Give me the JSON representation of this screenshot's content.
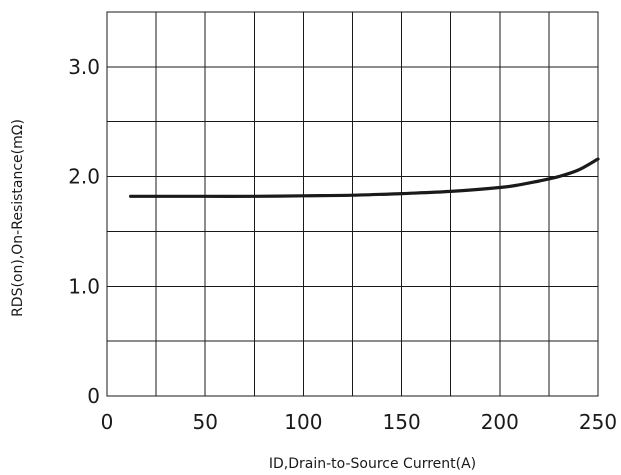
{
  "chart_data": {
    "type": "line",
    "title": "",
    "xlabel": "ID,Drain-to-Source Current(A)",
    "ylabel": "RDS(on),On-Resistance(mΩ)",
    "xlim": [
      0,
      250
    ],
    "ylim": [
      0,
      3.5
    ],
    "x_ticks": [
      0,
      50,
      100,
      150,
      200,
      250
    ],
    "x_tick_labels": [
      "0",
      "50",
      "100",
      "150",
      "200",
      "250"
    ],
    "y_ticks": [
      0,
      1.0,
      2.0,
      3.0
    ],
    "y_tick_labels": [
      "0",
      "1.0",
      "2.0",
      "3.0"
    ],
    "x_grid_step": 25,
    "y_grid_step": 0.5,
    "grid": true,
    "legend": "none",
    "series": [
      {
        "x": [
          12,
          25,
          50,
          75,
          100,
          125,
          150,
          175,
          200,
          210,
          220,
          230,
          240,
          250
        ],
        "y": [
          1.82,
          1.82,
          1.82,
          1.82,
          1.825,
          1.83,
          1.845,
          1.865,
          1.9,
          1.925,
          1.96,
          2.0,
          2.06,
          2.16
        ]
      }
    ]
  }
}
